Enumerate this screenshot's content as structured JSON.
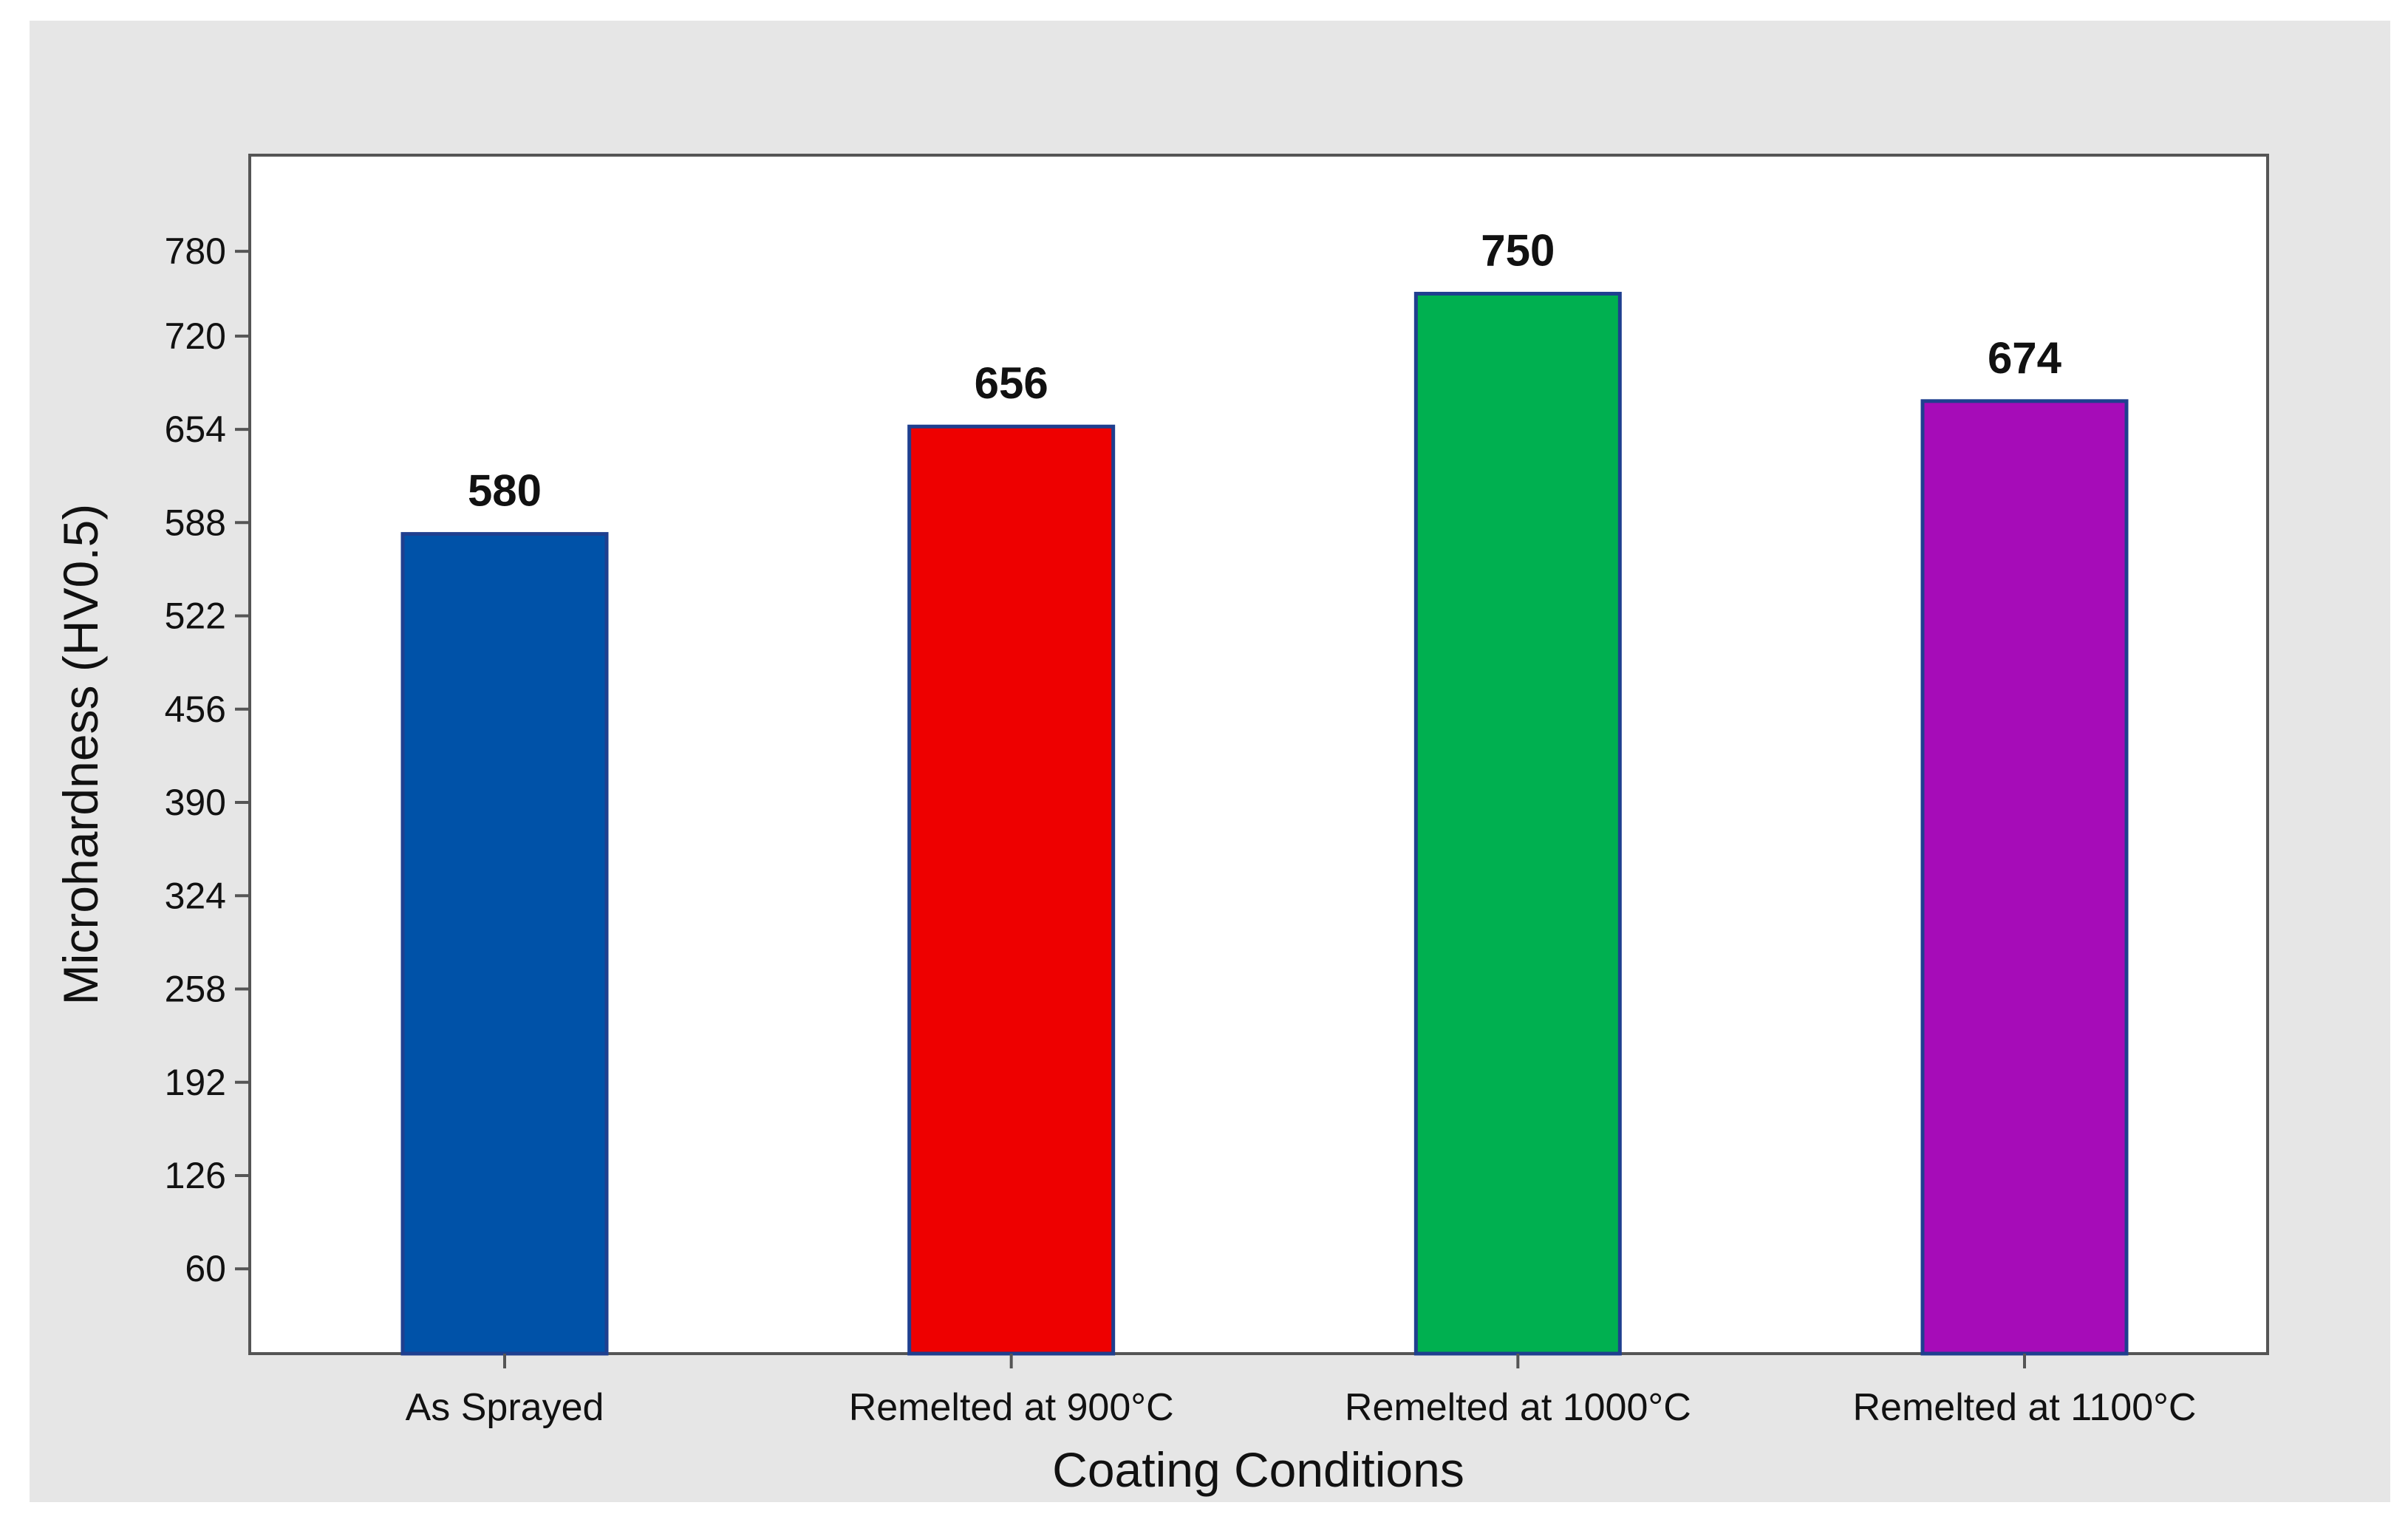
{
  "chart_data": {
    "type": "bar",
    "xlabel": "Coating Conditions",
    "ylabel": "Microhardness (HV0.5)",
    "categories": [
      "As Sprayed",
      "Remelted at 900°C",
      "Remelted at 1000°C",
      "Remelted at 1100°C"
    ],
    "values": [
      580,
      656,
      750,
      674
    ],
    "data_labels": [
      "580",
      "656",
      "750",
      "674"
    ],
    "yticks": [
      60,
      126,
      192,
      258,
      324,
      390,
      456,
      522,
      588,
      654,
      720,
      780
    ],
    "ylim": [
      0,
      848
    ],
    "grid": false,
    "legend": "none",
    "colors": {
      "bars": [
        "#0052a8",
        "#ee0000",
        "#00b050",
        "#a60cb8"
      ],
      "bar_outline": "#1f3f8f",
      "background": "#e6e6e6",
      "plot_background": "#ffffff",
      "axis": "#555555"
    }
  }
}
